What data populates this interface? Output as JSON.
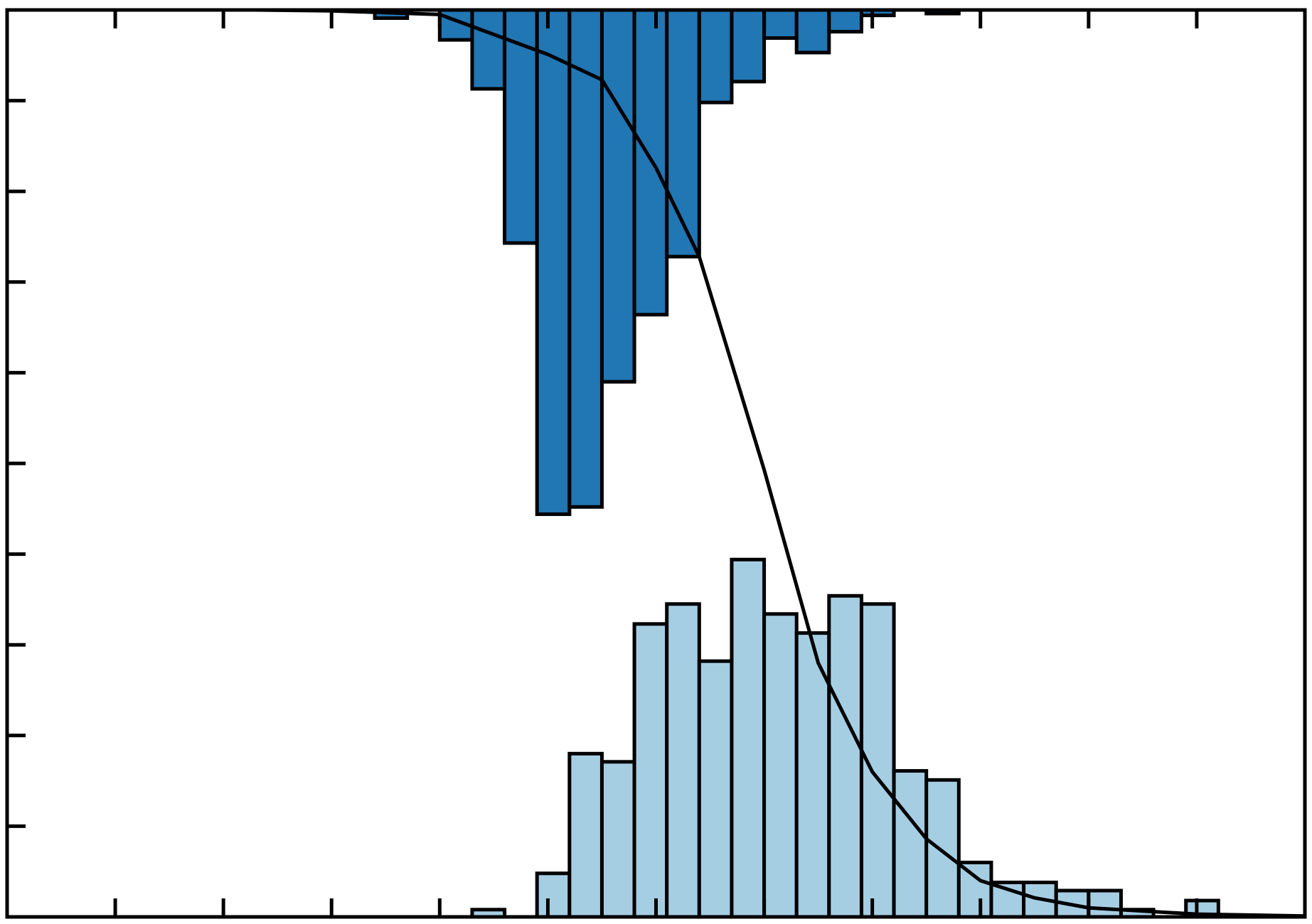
{
  "chart_data": {
    "type": "histogram",
    "bins": [
      3.4,
      3.7,
      4.0,
      4.3,
      4.6,
      4.9,
      5.2,
      5.5,
      5.8,
      6.1,
      6.4,
      6.7,
      7.0,
      7.3,
      7.6,
      7.9,
      8.2,
      8.5,
      8.8,
      9.1,
      9.4,
      9.7,
      10.0,
      10.3,
      10.6,
      10.9,
      11.2
    ],
    "series": [
      {
        "color": "#2176b4",
        "direction": "down",
        "values": [
          0.009,
          0,
          0.033,
          0.087,
          0.257,
          0.556,
          0.548,
          0.41,
          0.336,
          0.272,
          0.102,
          0.079,
          0.031,
          0.047,
          0.024,
          0.006,
          0,
          0.004,
          0,
          0,
          0,
          0,
          0,
          0,
          0,
          0
        ]
      },
      {
        "color": "#a6cee3",
        "direction": "up",
        "values": [
          0,
          0,
          0,
          0.008,
          0,
          0.048,
          0.18,
          0.171,
          0.323,
          0.345,
          0.282,
          0.394,
          0.334,
          0.313,
          0.354,
          0.345,
          0.161,
          0.151,
          0.06,
          0.038,
          0.038,
          0.029,
          0.029,
          0.008,
          0,
          0.018
        ]
      }
    ],
    "curve": {
      "color": "#000000",
      "x": [
        2.3,
        3,
        4,
        5,
        5.5,
        6,
        6.4,
        7,
        7.5,
        8,
        8.5,
        9,
        9.5,
        10,
        11,
        12
      ],
      "values": [
        1.0,
        0.999,
        0.995,
        0.951,
        0.923,
        0.826,
        0.728,
        0.493,
        0.28,
        0.16,
        0.086,
        0.04,
        0.021,
        0.01,
        0.003,
        0.001
      ]
    },
    "xlim": [
      0,
      12
    ],
    "xticks": [
      1,
      2,
      3,
      4,
      5,
      6,
      7,
      8,
      9,
      10,
      11
    ],
    "ylim": [
      0,
      1
    ],
    "yticks": [
      0.1,
      0.2,
      0.3,
      0.4,
      0.5,
      0.6,
      0.7,
      0.8,
      0.9
    ]
  }
}
